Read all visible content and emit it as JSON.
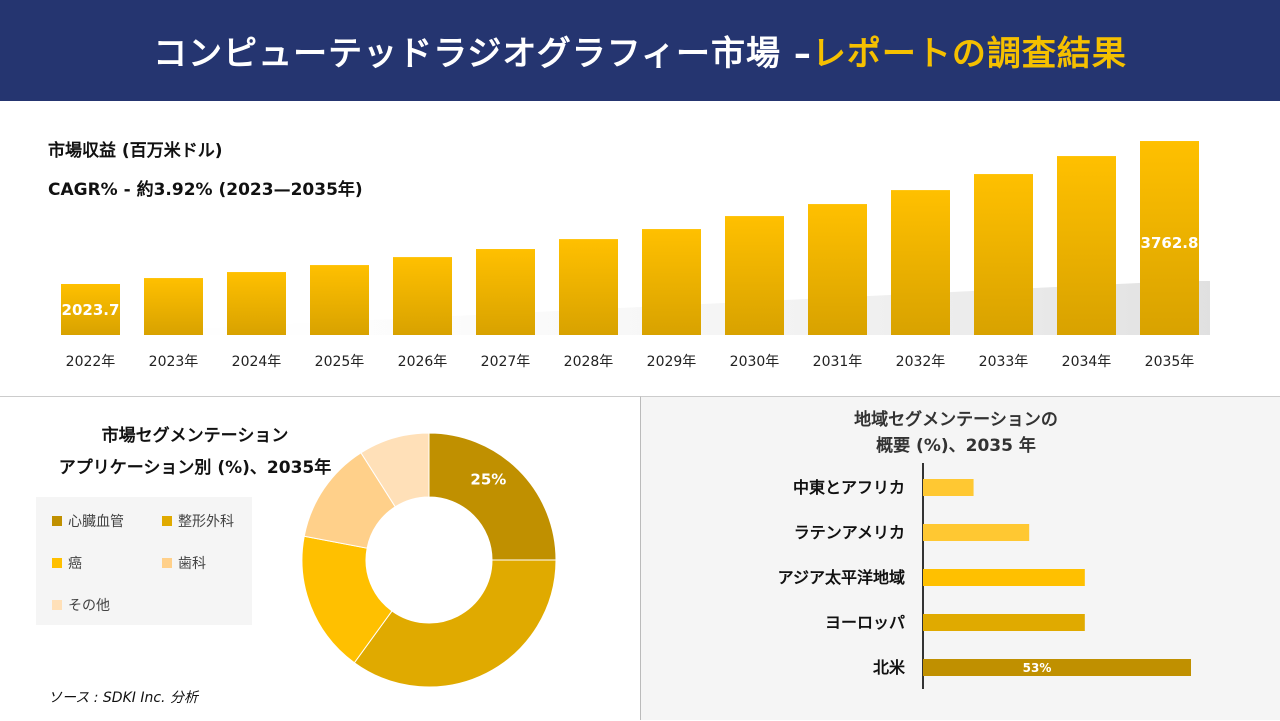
{
  "header": {
    "title_main": "コンピューテッドラジオグラフィー市場 –",
    "title_highlight": "レポートの調査結果"
  },
  "colors": {
    "header_bg": "#253570",
    "highlight": "#f5c000",
    "gold_dark": "#c09000",
    "gold": "#e0aa00",
    "yellow": "#ffc000",
    "peach": "#ffd08a",
    "cream": "#ffe0b8"
  },
  "chart_data": [
    {
      "type": "bar",
      "title": "市場収益 (百万米ドル)",
      "subtitle": "CAGR% - 約3.92% (2023—2035年)",
      "categories": [
        "2022年",
        "2023年",
        "2024年",
        "2025年",
        "2026年",
        "2027年",
        "2028年",
        "2029年",
        "2030年",
        "2031年",
        "2032年",
        "2033年",
        "2034年",
        "2035年"
      ],
      "values": [
        2023.7,
        2096,
        2169,
        2254,
        2351,
        2449,
        2570,
        2692,
        2850,
        2996,
        3166,
        3361,
        3580,
        3762.8
      ],
      "data_labels": {
        "0": "2023.7",
        "13": "3762.8"
      },
      "ylim": [
        1400,
        3800
      ],
      "grid": false
    },
    {
      "type": "pie",
      "title_line1": "市場セグメンテーション",
      "title_line2": "アプリケーション別 (%)、2035年",
      "categories": [
        "心臓血管",
        "整形外科",
        "癌",
        "歯科",
        "その他"
      ],
      "values": [
        25,
        35,
        18,
        13,
        9
      ],
      "data_labels": {
        "0": "25%"
      },
      "legend": "left"
    },
    {
      "type": "bar",
      "orientation": "horizontal",
      "title_line1": "地域セグメンテーションの",
      "title_line2": "概要 (%)、2035 年",
      "categories": [
        "中東とアフリカ",
        "ラテンアメリカ",
        "アジア太平洋地域",
        "ヨーロッパ",
        "北米"
      ],
      "values": [
        10,
        21,
        32,
        32,
        53
      ],
      "data_labels": {
        "4": "53%"
      }
    }
  ],
  "source": "ソース : SDKI Inc. 分析"
}
